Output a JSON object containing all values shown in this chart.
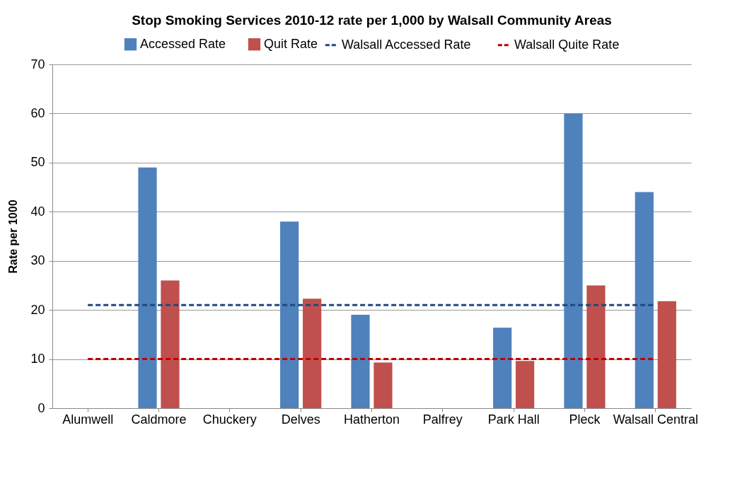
{
  "chart_data": {
    "type": "bar",
    "title": "Stop Smoking Services 2010-12 rate per 1,000 by Walsall Community Areas",
    "ylabel": "Rate per 1000",
    "categories": [
      "Alumwell",
      "Caldmore",
      "Chuckery",
      "Delves",
      "Hatherton",
      "Palfrey",
      "Park Hall",
      "Pleck",
      "Walsall Central"
    ],
    "series": [
      {
        "name": "Accessed Rate",
        "color": "#4f81bd",
        "values": [
          null,
          49,
          null,
          38,
          19,
          null,
          16.4,
          60,
          44
        ]
      },
      {
        "name": "Quit Rate",
        "color": "#c0504d",
        "values": [
          null,
          26,
          null,
          22.3,
          9.3,
          null,
          9.6,
          25,
          21.8
        ]
      },
      {
        "name": "Walsall Accessed Rate",
        "type": "line",
        "line_style": "dashed",
        "color": "#1f497d",
        "values": [
          21,
          21,
          21,
          21,
          21,
          21,
          21,
          21,
          21
        ]
      },
      {
        "name": "Walsall Quite Rate",
        "type": "line",
        "line_style": "dashed",
        "color": "#c00000",
        "values": [
          10,
          10,
          10,
          10,
          10,
          10,
          10,
          10,
          10
        ]
      }
    ],
    "ylim": [
      0,
      70
    ],
    "yticks": [
      0,
      10,
      20,
      30,
      40,
      50,
      60,
      70
    ],
    "grid": "y",
    "legend": "top"
  }
}
